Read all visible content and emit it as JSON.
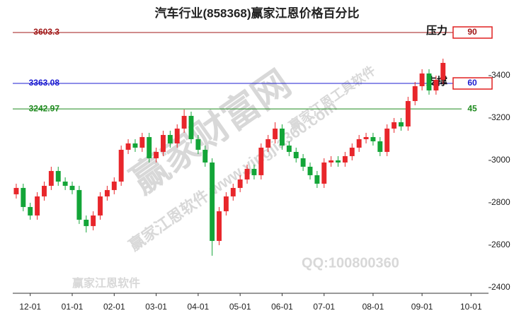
{
  "chart_data": {
    "type": "candlestick",
    "title": "汽车行业(858368)赢家江恩价格百分比",
    "categories": [
      null,
      null,
      "12-01",
      null,
      null,
      null,
      null,
      null,
      "01-01",
      null,
      null,
      null,
      null,
      null,
      "02-01",
      null,
      null,
      null,
      null,
      null,
      "03-01",
      null,
      null,
      null,
      null,
      null,
      "04-01",
      null,
      null,
      null,
      null,
      null,
      "05-01",
      null,
      null,
      null,
      null,
      null,
      "06-01",
      null,
      null,
      null,
      null,
      null,
      "07-01",
      null,
      null,
      null,
      null,
      null,
      null,
      "08-01",
      null,
      null,
      null,
      null,
      null,
      null,
      "09-01",
      null,
      null,
      null,
      null,
      null,
      null,
      "10-01",
      null,
      null
    ],
    "open": [
      2840,
      2870,
      2780,
      2740,
      2830,
      2880,
      2950,
      2900,
      2880,
      2860,
      2720,
      2690,
      2740,
      2830,
      2860,
      2900,
      3050,
      3080,
      3060,
      3110,
      3010,
      3040,
      3120,
      3080,
      3150,
      3210,
      3100,
      3050,
      2990,
      2620,
      2760,
      2830,
      2870,
      2910,
      2960,
      2930,
      3060,
      3100,
      3150,
      3070,
      3040,
      3010,
      2970,
      2930,
      2890,
      2990,
      3000,
      2990,
      3020,
      3060,
      3100,
      3110,
      3090,
      3040,
      3150,
      3180,
      3160,
      3280,
      3350,
      3410,
      3330,
      3380,
      null,
      null,
      null,
      null,
      null,
      null
    ],
    "high": [
      2890,
      2890,
      2800,
      2850,
      2900,
      2970,
      2970,
      2920,
      2900,
      2880,
      2740,
      2760,
      2850,
      2880,
      2920,
      3070,
      3100,
      3100,
      3130,
      3130,
      3060,
      3140,
      3140,
      3170,
      3240,
      3230,
      3120,
      3070,
      3010,
      2780,
      2850,
      2890,
      2930,
      2980,
      2980,
      3080,
      3120,
      3180,
      3170,
      3090,
      3060,
      3030,
      2990,
      2950,
      3010,
      3020,
      3020,
      3040,
      3080,
      3120,
      3130,
      3130,
      3110,
      3170,
      3200,
      3200,
      3300,
      3370,
      3430,
      3430,
      3400,
      3480,
      null,
      null,
      null,
      null,
      null,
      null
    ],
    "low": [
      2820,
      2760,
      2720,
      2720,
      2810,
      2860,
      2880,
      2860,
      2840,
      2700,
      2660,
      2670,
      2720,
      2810,
      2840,
      2880,
      3030,
      3040,
      3040,
      2990,
      2990,
      3020,
      3060,
      3060,
      3130,
      3080,
      3030,
      2970,
      2550,
      2600,
      2740,
      2810,
      2850,
      2890,
      2910,
      2910,
      3040,
      3080,
      3050,
      3020,
      2990,
      2950,
      2910,
      2870,
      2870,
      2970,
      2970,
      2970,
      3000,
      3040,
      3080,
      3070,
      3020,
      3020,
      3130,
      3140,
      3140,
      3260,
      3330,
      3310,
      3310,
      3360,
      null,
      null,
      null,
      null,
      null,
      null
    ],
    "close": [
      2870,
      2780,
      2740,
      2830,
      2880,
      2950,
      2900,
      2880,
      2860,
      2720,
      2690,
      2740,
      2830,
      2860,
      2900,
      3050,
      3080,
      3060,
      3110,
      3010,
      3040,
      3120,
      3080,
      3150,
      3210,
      3100,
      3050,
      2990,
      2620,
      2760,
      2830,
      2870,
      2910,
      2960,
      2930,
      3060,
      3100,
      3150,
      3070,
      3040,
      3010,
      2970,
      2930,
      2890,
      2990,
      3000,
      2990,
      3020,
      3060,
      3100,
      3110,
      3090,
      3040,
      3150,
      3180,
      3160,
      3280,
      3350,
      3410,
      3330,
      3380,
      3460,
      null,
      null,
      null,
      null,
      null,
      null
    ],
    "up_color": "#e8262b",
    "down_color": "#13a538",
    "ylim": [
      2373,
      3630
    ],
    "yticks": [
      2400,
      2600,
      2800,
      3000,
      3200,
      3400
    ],
    "levels": [
      {
        "value": 3603.3,
        "tag": "压力",
        "percent": 90,
        "color": "#a01818"
      },
      {
        "value": 3363.08,
        "tag": "支撑",
        "percent": 60,
        "color": "#1c1cd0"
      },
      {
        "value": 3242.97,
        "percent": 45,
        "color": "#1e8a1e"
      }
    ],
    "watermarks": [
      "赢家财富网",
      "赢家江恩软件 www.yingjia360.com",
      "赢家江恩工具软件",
      "QQ:100800360",
      "赢家江恩软件"
    ]
  }
}
